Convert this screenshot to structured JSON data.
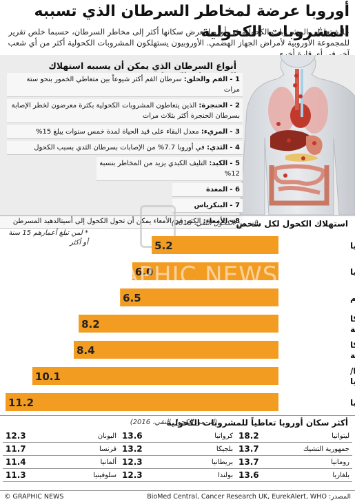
{
  "title": "أوروبا عرضة لمخاطر السرطان الذي تسببه المشروبات الكحولية",
  "intro": "عادة تعاطي المشروبات الكحولية في أوروبا تعرض سكانها أكثر إلى مخاطر السرطان، حسبما خلص تقرير للمجموعة الأوروبية لأمراض الجهاز الهضمي. الأوروبيون يستهلكون المشروبات الكحولية أكثر من أي شعب آخر في أي قارة أخرى",
  "cancer_section": {
    "title": "أنواع السرطان الذي يمكن أن يسببه استهلاك المشروبات الكحولية",
    "items": [
      {
        "num": "1 -",
        "name": "الفم والحلق:",
        "text": "سرطان الفم أكثر شيوعاً بين متعاطي الخمور بنحو ستة مرات"
      },
      {
        "num": "2 -",
        "name": "الحنجرة:",
        "text": "الذين يتعاطون المشروبات الكحولية بكثرة معرضون لخطر الإصابة بسرطان الحنجرة أكثر بثلاث مرات"
      },
      {
        "num": "3 -",
        "name": "المريء:",
        "text": "معدل البقاء على قيد الحياة لمدة خمس سنوات يبلغ 15%"
      },
      {
        "num": "4 -",
        "name": "الثدي:",
        "text": "في أوروبا 7.7% من الإصابات بسرطان الثدي بسبب الكحول"
      },
      {
        "num": "5 -",
        "name": "الكبد:",
        "text": "التليف الكبدي يزيد من المخاطر بنسبة 12%"
      },
      {
        "num": "6 -",
        "name": "المعدة",
        "text": ""
      },
      {
        "num": "7 -",
        "name": "البنكرياس",
        "text": ""
      },
      {
        "num": "8 -",
        "name": "الأمعاء:",
        "text": "الكثير في الأمعاء يمكن أن تحول الكحول إلى أسيتالدهيد المسرطن"
      }
    ]
  },
  "chart_section": {
    "title": "استهلاك الكحول لكل شخص*",
    "subtitle": "(لتر من الكحول النقي، 2010)",
    "note": "* لمن تبلغ أعمارهم 15 سنة أو أكثر"
  },
  "chart_data": {
    "type": "bar",
    "orientation": "horizontal",
    "title": "استهلاك الكحول لكل شخص*",
    "subtitle": "(لتر من الكحول النقي، 2010)",
    "categories": [
      "آسيا",
      "أفريقيا",
      "العالم",
      "أميركا الشمالية",
      "أميركا الجنوبية",
      "أستراليا/ أوقيانوسيا",
      "أوروبا"
    ],
    "values": [
      5.2,
      6.0,
      6.5,
      8.2,
      8.4,
      10.1,
      11.2
    ],
    "value_labels": [
      "5.2",
      "6.0",
      "6.5",
      "8.2",
      "8.4",
      "10.1",
      "11.2"
    ],
    "xlim": [
      0,
      11.2
    ],
    "grid": false,
    "bar_color": "#f39c22"
  },
  "table_section": {
    "title": "أكثر سكان أوروبا تعاطياً للمشروبات الكحولية",
    "subtitle": "(لتر من الكحول النقي، 2016)",
    "rows": [
      [
        {
          "country": "ليتوانيا",
          "value": "18.2"
        },
        {
          "country": "كرواتيا",
          "value": "13.6"
        },
        {
          "country": "اليونان",
          "value": "12.3"
        }
      ],
      [
        {
          "country": "جمهورية التشيك",
          "value": "13.7"
        },
        {
          "country": "بلجيكا",
          "value": "13.2"
        },
        {
          "country": "فرنسا",
          "value": "11.7"
        }
      ],
      [
        {
          "country": "رومانيا",
          "value": "13.7"
        },
        {
          "country": "بريطانيا",
          "value": "12.3"
        },
        {
          "country": "ألمانيا",
          "value": "11.4"
        }
      ],
      [
        {
          "country": "بلغاريا",
          "value": "13.6"
        },
        {
          "country": "بولندا",
          "value": "12.3"
        },
        {
          "country": "سلوفينيا",
          "value": "11.3"
        }
      ]
    ]
  },
  "footer": {
    "left": "© GRAPHIC NEWS",
    "right": "المصدر: BioMed Central, Cancer Research UK, EurekAlert, WHO"
  },
  "watermark": "GRAPHIC NEWS",
  "colors": {
    "bar": "#f39c22",
    "panel": "#ececec",
    "organs": "#c0392b"
  }
}
